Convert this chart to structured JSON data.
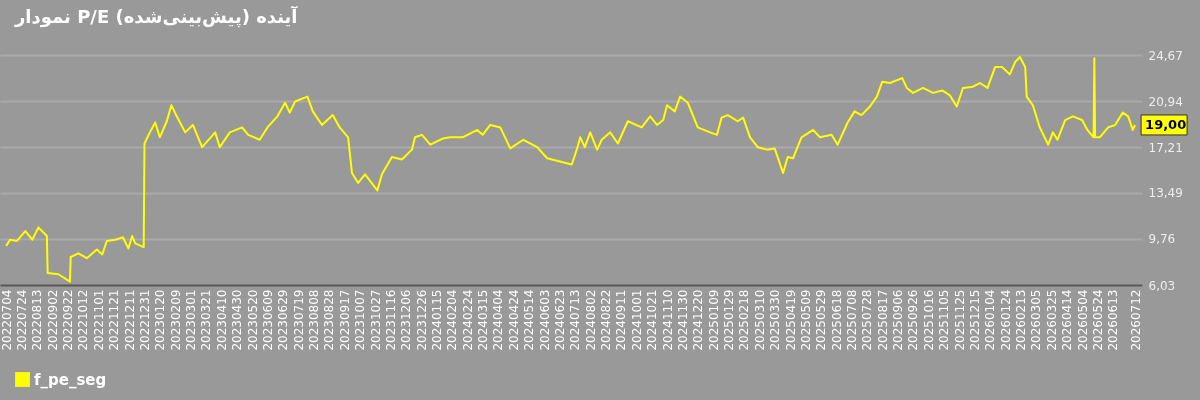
{
  "chart_data": {
    "type": "line",
    "title": "نمودار P/E آینده (پیش‌بینی‌شده)",
    "x": [
      "2022-07-04",
      "2022-07-09",
      "2022-07-18",
      "2022-07-29",
      "2022-08-07",
      "2022-08-15",
      "2022-08-26",
      "2022-08-27",
      "2022-09-10",
      "2022-09-25",
      "2022-09-26",
      "2022-10-06",
      "2022-10-17",
      "2022-10-30",
      "2022-11-06",
      "2022-11-12",
      "2022-11-23",
      "2022-12-03",
      "2022-12-10",
      "2022-12-15",
      "2022-12-19",
      "2022-12-30",
      "2022-12-31",
      "2023-01-07",
      "2023-01-14",
      "2023-01-20",
      "2023-01-29",
      "2023-02-04",
      "2023-02-11",
      "2023-02-22",
      "2023-03-04",
      "2023-03-16",
      "2023-04-02",
      "2023-04-08",
      "2023-04-21",
      "2023-05-07",
      "2023-05-15",
      "2023-05-30",
      "2023-06-09",
      "2023-06-22",
      "2023-07-02",
      "2023-07-08",
      "2023-07-15",
      "2023-07-31",
      "2023-08-07",
      "2023-08-19",
      "2023-09-02",
      "2023-09-11",
      "2023-09-22",
      "2023-09-27",
      "2023-10-05",
      "2023-10-14",
      "2023-10-30",
      "2023-11-05",
      "2023-11-18",
      "2023-12-01",
      "2023-12-14",
      "2023-12-18",
      "2023-12-27",
      "2024-01-07",
      "2024-01-23",
      "2024-02-02",
      "2024-02-18",
      "2024-03-08",
      "2024-03-15",
      "2024-03-25",
      "2024-04-07",
      "2024-04-20",
      "2024-05-07",
      "2024-05-25",
      "2024-06-07",
      "2024-06-26",
      "2024-07-09",
      "2024-07-16",
      "2024-07-20",
      "2024-07-26",
      "2024-08-02",
      "2024-08-11",
      "2024-08-17",
      "2024-08-28",
      "2024-09-07",
      "2024-09-20",
      "2024-10-08",
      "2024-10-19",
      "2024-10-28",
      "2024-11-05",
      "2024-11-10",
      "2024-11-20",
      "2024-11-27",
      "2024-12-07",
      "2024-12-20",
      "2025-01-05",
      "2025-01-14",
      "2025-01-20",
      "2025-01-28",
      "2025-02-10",
      "2025-02-17",
      "2025-02-26",
      "2025-03-08",
      "2025-03-20",
      "2025-03-30",
      "2025-04-10",
      "2025-04-16",
      "2025-04-23",
      "2025-04-28",
      "2025-05-04",
      "2025-05-19",
      "2025-05-28",
      "2025-06-12",
      "2025-06-20",
      "2025-07-03",
      "2025-07-12",
      "2025-07-21",
      "2025-08-01",
      "2025-08-10",
      "2025-08-17",
      "2025-08-27",
      "2025-09-12",
      "2025-09-18",
      "2025-09-26",
      "2025-10-09",
      "2025-10-22",
      "2025-11-03",
      "2025-11-13",
      "2025-11-22",
      "2025-11-30",
      "2025-12-13",
      "2025-12-22",
      "2026-01-01",
      "2026-01-11",
      "2026-01-20",
      "2026-01-30",
      "2026-02-06",
      "2026-02-12",
      "2026-02-19",
      "2026-02-21",
      "2026-03-01",
      "2026-03-10",
      "2026-03-21",
      "2026-03-27",
      "2026-04-02",
      "2026-04-12",
      "2026-04-22",
      "2026-05-04",
      "2026-05-11",
      "2026-05-19",
      "2026-05-20",
      "2026-05-21",
      "2026-05-27",
      "2026-06-07",
      "2026-06-16",
      "2026-06-26",
      "2026-07-03",
      "2026-07-09",
      "2026-07-12"
    ],
    "series": [
      {
        "name": "f_pe_seg",
        "color": "#ffff00",
        "values": [
          9.2,
          9.7,
          9.6,
          10.4,
          9.7,
          10.7,
          10.0,
          7.0,
          6.9,
          6.3,
          8.3,
          8.6,
          8.2,
          8.9,
          8.5,
          9.6,
          9.7,
          9.9,
          9.0,
          10.0,
          9.4,
          9.1,
          17.5,
          18.4,
          19.2,
          18.0,
          19.3,
          20.6,
          19.7,
          18.4,
          19.0,
          17.2,
          18.4,
          17.2,
          18.4,
          18.8,
          18.2,
          17.8,
          18.8,
          19.7,
          20.8,
          20.0,
          20.9,
          21.3,
          20.1,
          19.0,
          19.8,
          18.8,
          18.0,
          15.1,
          14.3,
          15.0,
          13.7,
          15.0,
          16.4,
          16.2,
          17.0,
          18.0,
          18.2,
          17.4,
          17.9,
          18.0,
          18.0,
          18.6,
          18.2,
          19.0,
          18.8,
          17.1,
          17.8,
          17.2,
          16.3,
          16.0,
          15.8,
          17.1,
          18.0,
          17.2,
          18.4,
          17.0,
          17.8,
          18.4,
          17.5,
          19.3,
          18.8,
          19.7,
          19.0,
          19.4,
          20.6,
          20.1,
          21.3,
          20.8,
          18.8,
          18.4,
          18.2,
          19.6,
          19.8,
          19.3,
          19.6,
          18.0,
          17.2,
          17.0,
          17.1,
          15.1,
          16.4,
          16.3,
          17.1,
          18.0,
          18.6,
          18.0,
          18.2,
          17.4,
          19.2,
          20.1,
          19.8,
          20.5,
          21.3,
          22.5,
          22.4,
          22.8,
          22.0,
          21.6,
          22.0,
          21.6,
          21.8,
          21.4,
          20.5,
          22.0,
          22.1,
          22.4,
          22.0,
          23.7,
          23.7,
          23.1,
          24.1,
          24.5,
          23.7,
          21.3,
          20.6,
          18.8,
          17.4,
          18.4,
          17.8,
          19.4,
          19.7,
          19.4,
          18.6,
          18.0,
          24.4,
          18.0,
          18.0,
          18.8,
          19.0,
          20.0,
          19.7,
          18.6,
          19.0
        ]
      }
    ],
    "xlim": [
      "2022-06-26",
      "2026-07-21"
    ],
    "xticks": [
      {
        "value": "2022-07-04",
        "label": "20220704"
      },
      {
        "value": "2022-07-24",
        "label": "20220724"
      },
      {
        "value": "2022-08-13",
        "label": "20220813"
      },
      {
        "value": "2022-09-02",
        "label": "20220902"
      },
      {
        "value": "2022-09-22",
        "label": "20220922"
      },
      {
        "value": "2022-10-12",
        "label": "20221012"
      },
      {
        "value": "2022-11-01",
        "label": "20221101"
      },
      {
        "value": "2022-11-21",
        "label": "20221121"
      },
      {
        "value": "2022-12-11",
        "label": "20221211"
      },
      {
        "value": "2022-12-31",
        "label": "20221231"
      },
      {
        "value": "2023-01-20",
        "label": "20230120"
      },
      {
        "value": "2023-02-09",
        "label": "20230209"
      },
      {
        "value": "2023-03-01",
        "label": "20230301"
      },
      {
        "value": "2023-03-21",
        "label": "20230321"
      },
      {
        "value": "2023-04-10",
        "label": "20230410"
      },
      {
        "value": "2023-04-30",
        "label": "20230430"
      },
      {
        "value": "2023-05-20",
        "label": "20230520"
      },
      {
        "value": "2023-06-09",
        "label": "20230609"
      },
      {
        "value": "2023-06-29",
        "label": "20230629"
      },
      {
        "value": "2023-07-19",
        "label": "20230719"
      },
      {
        "value": "2023-08-08",
        "label": "20230808"
      },
      {
        "value": "2023-08-28",
        "label": "20230828"
      },
      {
        "value": "2023-09-17",
        "label": "20230917"
      },
      {
        "value": "2023-10-07",
        "label": "20231007"
      },
      {
        "value": "2023-10-27",
        "label": "20231027"
      },
      {
        "value": "2023-11-16",
        "label": "20231116"
      },
      {
        "value": "2023-12-06",
        "label": "20231206"
      },
      {
        "value": "2023-12-26",
        "label": "20231226"
      },
      {
        "value": "2024-01-15",
        "label": "20240115"
      },
      {
        "value": "2024-02-04",
        "label": "20240204"
      },
      {
        "value": "2024-02-24",
        "label": "20240224"
      },
      {
        "value": "2024-03-15",
        "label": "20240315"
      },
      {
        "value": "2024-04-04",
        "label": "20240404"
      },
      {
        "value": "2024-04-24",
        "label": "20240424"
      },
      {
        "value": "2024-05-14",
        "label": "20240514"
      },
      {
        "value": "2024-06-03",
        "label": "20240603"
      },
      {
        "value": "2024-06-23",
        "label": "20240623"
      },
      {
        "value": "2024-07-13",
        "label": "20240713"
      },
      {
        "value": "2024-08-02",
        "label": "20240802"
      },
      {
        "value": "2024-08-22",
        "label": "20240822"
      },
      {
        "value": "2024-09-11",
        "label": "20240911"
      },
      {
        "value": "2024-10-01",
        "label": "20241001"
      },
      {
        "value": "2024-10-21",
        "label": "20241021"
      },
      {
        "value": "2024-11-10",
        "label": "20241110"
      },
      {
        "value": "2024-11-30",
        "label": "20241130"
      },
      {
        "value": "2024-12-20",
        "label": "20241220"
      },
      {
        "value": "2025-01-09",
        "label": "20250109"
      },
      {
        "value": "2025-01-29",
        "label": "20250129"
      },
      {
        "value": "2025-02-18",
        "label": "20250218"
      },
      {
        "value": "2025-03-10",
        "label": "20250310"
      },
      {
        "value": "2025-03-30",
        "label": "20250330"
      },
      {
        "value": "2025-04-19",
        "label": "20250419"
      },
      {
        "value": "2025-05-09",
        "label": "20250509"
      },
      {
        "value": "2025-05-29",
        "label": "20250529"
      },
      {
        "value": "2025-06-18",
        "label": "20250618"
      },
      {
        "value": "2025-07-08",
        "label": "20250708"
      },
      {
        "value": "2025-07-28",
        "label": "20250728"
      },
      {
        "value": "2025-08-17",
        "label": "20250817"
      },
      {
        "value": "2025-09-06",
        "label": "20250906"
      },
      {
        "value": "2025-09-26",
        "label": "20250926"
      },
      {
        "value": "2025-10-16",
        "label": "20251016"
      },
      {
        "value": "2025-11-05",
        "label": "20251105"
      },
      {
        "value": "2025-11-25",
        "label": "20251125"
      },
      {
        "value": "2025-12-15",
        "label": "20251215"
      },
      {
        "value": "2026-01-04",
        "label": "20260104"
      },
      {
        "value": "2026-01-24",
        "label": "20260124"
      },
      {
        "value": "2026-02-13",
        "label": "20260213"
      },
      {
        "value": "2026-03-05",
        "label": "20260305"
      },
      {
        "value": "2026-03-25",
        "label": "20260325"
      },
      {
        "value": "2026-04-14",
        "label": "20260414"
      },
      {
        "value": "2026-05-04",
        "label": "20260504"
      },
      {
        "value": "2026-05-24",
        "label": "20260524"
      },
      {
        "value": "2026-06-13",
        "label": "20260613"
      },
      {
        "value": "2026-07-12",
        "label": "20260712"
      }
    ],
    "ylim": [
      6.03,
      24.67
    ],
    "yticks": [
      {
        "value": 6.03,
        "label": "6,03"
      },
      {
        "value": 9.76,
        "label": "9,76"
      },
      {
        "value": 13.49,
        "label": "13,49"
      },
      {
        "value": 17.21,
        "label": "17,21"
      },
      {
        "value": 20.94,
        "label": "20,94"
      },
      {
        "value": 24.67,
        "label": "24,67"
      }
    ],
    "annotations": [
      {
        "text": "19,00",
        "x": "2026-07-12",
        "y": 19
      }
    ],
    "grid": "y",
    "legend": "bottom left"
  }
}
